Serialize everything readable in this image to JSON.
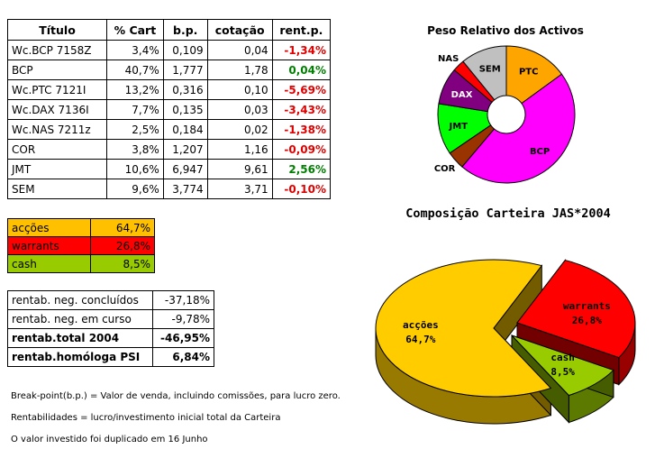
{
  "portfolio": {
    "headers": [
      "Título",
      "% Cart",
      "b.p.",
      "cotação",
      "rent.p."
    ],
    "rows": [
      {
        "titulo": "Wc.BCP 7158Z",
        "cart": "3,4%",
        "bp": "0,109",
        "cotacao": "0,04",
        "rent": "-1,34%",
        "rent_color": "#e00000"
      },
      {
        "titulo": "BCP",
        "cart": "40,7%",
        "bp": "1,777",
        "cotacao": "1,78",
        "rent": "0,04%",
        "rent_color": "#008000"
      },
      {
        "titulo": "Wc.PTC 7121I",
        "cart": "13,2%",
        "bp": "0,316",
        "cotacao": "0,10",
        "rent": "-5,69%",
        "rent_color": "#e00000"
      },
      {
        "titulo": "Wc.DAX 7136I",
        "cart": "7,7%",
        "bp": "0,135",
        "cotacao": "0,03",
        "rent": "-3,43%",
        "rent_color": "#e00000"
      },
      {
        "titulo": "Wc.NAS 7211z",
        "cart": "2,5%",
        "bp": "0,184",
        "cotacao": "0,02",
        "rent": "-1,38%",
        "rent_color": "#e00000"
      },
      {
        "titulo": "COR",
        "cart": "3,8%",
        "bp": "1,207",
        "cotacao": "1,16",
        "rent": "-0,09%",
        "rent_color": "#e00000"
      },
      {
        "titulo": "JMT",
        "cart": "10,6%",
        "bp": "6,947",
        "cotacao": "9,61",
        "rent": "2,56%",
        "rent_color": "#008000"
      },
      {
        "titulo": "SEM",
        "cart": "9,6%",
        "bp": "3,774",
        "cotacao": "3,71",
        "rent": "-0,10%",
        "rent_color": "#e00000"
      }
    ]
  },
  "allocation": [
    {
      "label": "acções",
      "value": "64,7%",
      "bg": "#ffc000"
    },
    {
      "label": "warrants",
      "value": "26,8%",
      "bg": "#ff0000"
    },
    {
      "label": "cash",
      "value": "8,5%",
      "bg": "#99cc00"
    }
  ],
  "stats": [
    {
      "label": "rentab. neg. concluídos",
      "value": "-37,18%",
      "bold": false
    },
    {
      "label": "rentab. neg. em curso",
      "value": "-9,78%",
      "bold": false
    },
    {
      "label": "rentab.total 2004",
      "value": "-46,95%",
      "bold": true
    },
    {
      "label": "rentab.homóloga PSI",
      "value": "6,84%",
      "bold": true
    }
  ],
  "notes": [
    "Break-point(b.p.) = Valor de venda, incluindo comissões, para lucro zero.",
    "Rentabilidades = lucro/investimento inicial total da Carteira",
    "O valor investido foi duplicado em 16 Junho"
  ],
  "chart_data": [
    {
      "type": "pie",
      "title": "Peso Relativo dos Activos",
      "categories": [
        "PTC",
        "BCP",
        "COR",
        "JMT",
        "DAX",
        "NAS",
        "SEM"
      ],
      "values": [
        13.2,
        40.7,
        3.8,
        10.6,
        7.7,
        2.5,
        9.6
      ],
      "colors": [
        "#ffa500",
        "#ff00ff",
        "#993300",
        "#00ff00",
        "#800080",
        "#ff0000",
        "#c0c0c0"
      ],
      "style": "doughnut",
      "labels_outside": [
        "COR",
        "NAS"
      ]
    },
    {
      "type": "pie",
      "title": "Composição Carteira JAS*2004",
      "categories": [
        "acções",
        "warrants",
        "cash"
      ],
      "values": [
        64.7,
        26.8,
        8.5
      ],
      "value_labels": [
        "64,7%",
        "26,8%",
        "8,5%"
      ],
      "colors": [
        "#ffcc00",
        "#ff0000",
        "#99cc00"
      ],
      "style": "3d-exploded"
    }
  ]
}
